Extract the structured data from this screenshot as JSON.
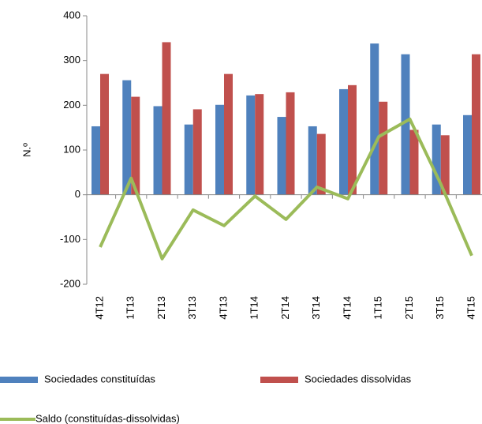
{
  "chart_data": {
    "type": "bar",
    "y_label": "N.º",
    "categories": [
      "4T12",
      "1T13",
      "2T13",
      "3T13",
      "4T13",
      "1T14",
      "2T14",
      "3T14",
      "4T14",
      "1T15",
      "2T15",
      "3T15",
      "4T15"
    ],
    "series": [
      {
        "name": "Sociedades constituídas",
        "type": "bar",
        "color": "#4f81bd",
        "values": [
          153,
          256,
          198,
          157,
          201,
          222,
          174,
          153,
          236,
          338,
          314,
          157,
          178
        ]
      },
      {
        "name": "Sociedades dissolvidas",
        "type": "bar",
        "color": "#c0504d",
        "values": [
          270,
          219,
          341,
          191,
          270,
          225,
          229,
          136,
          245,
          208,
          145,
          133,
          314
        ]
      },
      {
        "name": "Saldo (constituídas-dissolvidas)",
        "type": "line",
        "color": "#9bbb59",
        "values": [
          -117,
          37,
          -143,
          -34,
          -69,
          -3,
          -55,
          17,
          -9,
          130,
          169,
          24,
          -136
        ]
      }
    ],
    "ylim": [
      -200,
      400
    ],
    "yticks": [
      -200,
      -100,
      0,
      100,
      200,
      300,
      400
    ]
  }
}
